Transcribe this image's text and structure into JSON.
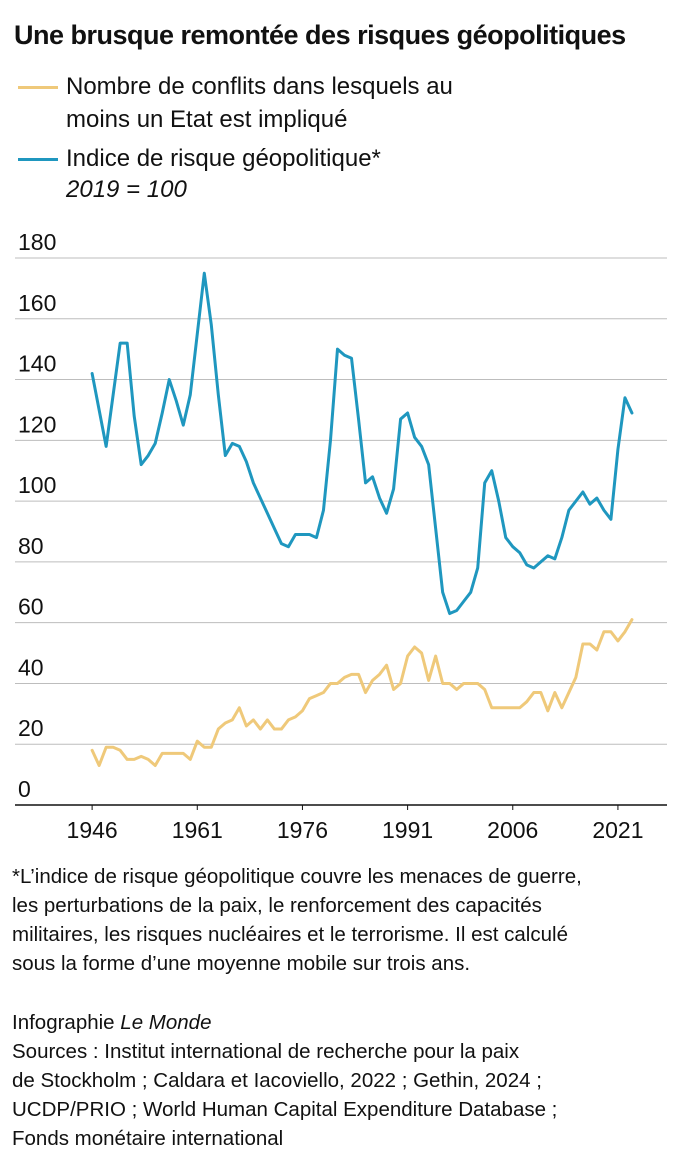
{
  "chart_data": {
    "type": "line",
    "title": "Une brusque remontée des risques géopolitiques",
    "ylabel": "2019 = 100",
    "x": [
      1946,
      1947,
      1948,
      1949,
      1950,
      1951,
      1952,
      1953,
      1954,
      1955,
      1956,
      1957,
      1958,
      1959,
      1960,
      1961,
      1962,
      1963,
      1964,
      1965,
      1966,
      1967,
      1968,
      1969,
      1970,
      1971,
      1972,
      1973,
      1974,
      1975,
      1976,
      1977,
      1978,
      1979,
      1980,
      1981,
      1982,
      1983,
      1984,
      1985,
      1986,
      1987,
      1988,
      1989,
      1990,
      1991,
      1992,
      1993,
      1994,
      1995,
      1996,
      1997,
      1998,
      1999,
      2000,
      2001,
      2002,
      2003,
      2004,
      2005,
      2006,
      2007,
      2008,
      2009,
      2010,
      2011,
      2012,
      2013,
      2014,
      2015,
      2016,
      2017,
      2018,
      2019,
      2020,
      2021,
      2022,
      2023
    ],
    "series": [
      {
        "name": "Nombre de conflits dans lesquels au moins un Etat est impliqué",
        "color": "#efc97a",
        "values": [
          18,
          13,
          19,
          19,
          18,
          15,
          15,
          16,
          15,
          13,
          17,
          17,
          17,
          17,
          15,
          21,
          19,
          19,
          25,
          27,
          28,
          32,
          26,
          28,
          25,
          28,
          25,
          25,
          28,
          29,
          31,
          35,
          36,
          37,
          40,
          40,
          42,
          43,
          43,
          37,
          41,
          43,
          46,
          38,
          40,
          49,
          52,
          50,
          41,
          49,
          40,
          40,
          38,
          40,
          40,
          40,
          38,
          32,
          32,
          32,
          32,
          32,
          34,
          37,
          37,
          31,
          37,
          32,
          37,
          42,
          53,
          53,
          51,
          57,
          57,
          54,
          57,
          61
        ]
      },
      {
        "name": "Indice de risque géopolitique*",
        "color": "#1f97bf",
        "values": [
          142,
          130,
          118,
          135,
          152,
          152,
          128,
          112,
          115,
          119,
          129,
          140,
          133,
          125,
          135,
          155,
          175,
          158,
          135,
          115,
          119,
          118,
          113,
          106,
          101,
          96,
          91,
          86,
          85,
          89,
          89,
          89,
          88,
          97,
          120,
          150,
          148,
          147,
          127,
          106,
          108,
          101,
          96,
          104,
          127,
          129,
          121,
          118,
          112,
          91,
          70,
          63,
          64,
          67,
          70,
          78,
          106,
          110,
          100,
          88,
          85,
          83,
          79,
          78,
          80,
          82,
          81,
          88,
          97,
          100,
          103,
          99,
          101,
          97,
          94,
          117,
          134,
          129
        ]
      }
    ],
    "xlim": [
      1935,
      2028
    ],
    "xticks": [
      1946,
      1961,
      1976,
      1991,
      2006,
      2021
    ],
    "ylim": [
      0,
      180
    ],
    "yticks": [
      0,
      20,
      40,
      60,
      80,
      100,
      120,
      140,
      160,
      180
    ],
    "grid": true,
    "note": [
      "*L’indice de risque géopolitique couvre les menaces de guerre,",
      "les perturbations de la paix, le renforcement des capacités",
      "militaires, les risques nucléaires et le terrorisme. Il est calculé",
      "sous la forme d’une moyenne mobile sur trois ans."
    ],
    "credit": "Infographie",
    "credit_source": "Le Monde",
    "sources": [
      "Sources : Institut international de recherche pour la paix",
      "de Stockholm ; Caldara et Iacoviello, 2022 ; Gethin, 2024 ;",
      "UCDP/PRIO ; World Human Capital Expenditure Database ;",
      "Fonds monétaire international"
    ]
  }
}
